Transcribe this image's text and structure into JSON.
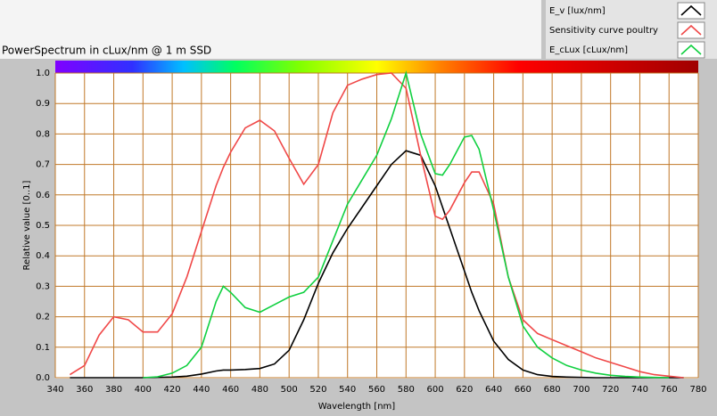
{
  "chart_data": {
    "type": "line",
    "title": "PowerSpectrum in cLux/nm @ 1 m SSD",
    "x_label": "Wavelength [nm]",
    "y_label": "Relative value [0..1]",
    "x": [
      350,
      360,
      370,
      380,
      390,
      400,
      410,
      420,
      430,
      440,
      450,
      455,
      460,
      470,
      480,
      490,
      500,
      510,
      520,
      530,
      540,
      550,
      560,
      570,
      580,
      590,
      600,
      605,
      610,
      620,
      625,
      630,
      640,
      650,
      660,
      670,
      680,
      690,
      700,
      710,
      720,
      730,
      740,
      750,
      760,
      770
    ],
    "series": [
      {
        "name": "E_v [lux/nm]",
        "color": "#000000",
        "values": [
          0,
          0,
          0,
          0,
          0,
          0,
          0.001,
          0.002,
          0.005,
          0.012,
          0.022,
          0.025,
          0.025,
          0.027,
          0.03,
          0.045,
          0.09,
          0.19,
          0.31,
          0.41,
          0.49,
          0.56,
          0.63,
          0.7,
          0.745,
          0.73,
          0.63,
          0.56,
          0.49,
          0.35,
          0.28,
          0.22,
          0.12,
          0.06,
          0.025,
          0.01,
          0.004,
          0.002,
          0.001,
          0,
          0,
          0,
          0,
          0,
          0,
          0
        ]
      },
      {
        "name": "Sensitivity curve poultry",
        "color": "#f04848",
        "values": [
          0.01,
          0.04,
          0.14,
          0.2,
          0.19,
          0.15,
          0.15,
          0.21,
          0.33,
          0.48,
          0.63,
          0.69,
          0.74,
          0.82,
          0.845,
          0.81,
          0.72,
          0.635,
          0.7,
          0.87,
          0.96,
          0.98,
          0.995,
          1.0,
          0.95,
          0.73,
          0.53,
          0.52,
          0.55,
          0.64,
          0.675,
          0.675,
          0.57,
          0.33,
          0.19,
          0.145,
          0.125,
          0.105,
          0.085,
          0.065,
          0.05,
          0.035,
          0.02,
          0.01,
          0.005,
          0
        ]
      },
      {
        "name": "E_cLux [cLux/nm]",
        "color": "#10d040",
        "values": [
          null,
          null,
          null,
          null,
          null,
          0,
          0.003,
          0.015,
          0.04,
          0.1,
          0.25,
          0.3,
          0.28,
          0.23,
          0.215,
          0.24,
          0.265,
          0.28,
          0.33,
          0.45,
          0.57,
          0.65,
          0.73,
          0.85,
          1.0,
          0.8,
          0.67,
          0.665,
          0.7,
          0.79,
          0.795,
          0.75,
          0.55,
          0.33,
          0.17,
          0.1,
          0.065,
          0.04,
          0.025,
          0.015,
          0.008,
          0.004,
          0.002,
          0.001,
          0,
          null
        ]
      }
    ],
    "xlim": [
      340,
      780
    ],
    "xticks": [
      340,
      360,
      380,
      400,
      420,
      440,
      460,
      480,
      500,
      520,
      540,
      560,
      580,
      600,
      620,
      640,
      660,
      680,
      700,
      720,
      740,
      760,
      780
    ],
    "ylim": [
      0,
      1
    ],
    "yticks": [
      {
        "value": 0,
        "label": "0.0"
      },
      0.1,
      0.2,
      0.3,
      0.4,
      0.5,
      0.6,
      0.7,
      0.8,
      0.9,
      {
        "value": 1,
        "label": "1.0"
      }
    ],
    "grid": true,
    "grid_color": "#c07828"
  }
}
